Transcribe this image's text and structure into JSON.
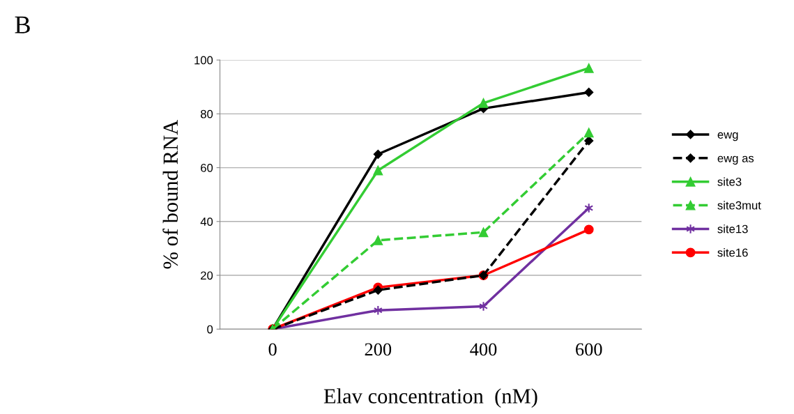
{
  "chart_data": {
    "type": "line",
    "xlabel": "Elav concentration  (nM)",
    "ylabel": "% of bound RNA",
    "annotations": [
      "B"
    ],
    "categories": [
      "0",
      "200",
      "400",
      "600"
    ],
    "ylim": [
      0,
      100
    ],
    "yticks": [
      0,
      20,
      40,
      60,
      80,
      100
    ],
    "grid": "y",
    "legend": "right",
    "series": [
      {
        "name": "ewg",
        "color": "#000000",
        "marker": "diamond",
        "line_style": "solid",
        "values": [
          0,
          65,
          82,
          88
        ]
      },
      {
        "name": "ewg as",
        "color": "#000000",
        "marker": "diamond",
        "line_style": "dashed",
        "values": [
          0,
          14.5,
          20,
          70
        ]
      },
      {
        "name": "site3",
        "color": "#33cc33",
        "marker": "triangle",
        "line_style": "solid",
        "values": [
          0,
          59,
          84,
          97
        ]
      },
      {
        "name": "site3mut",
        "color": "#33cc33",
        "marker": "triangle",
        "line_style": "dashed",
        "values": [
          0,
          33,
          36,
          73
        ]
      },
      {
        "name": "site13",
        "color": "#7030a0",
        "marker": "cross",
        "line_style": "solid",
        "values": [
          0,
          7,
          8.5,
          45
        ]
      },
      {
        "name": "site16",
        "color": "#ff0000",
        "marker": "circle",
        "line_style": "solid",
        "values": [
          0,
          15.5,
          20,
          37
        ]
      }
    ]
  }
}
